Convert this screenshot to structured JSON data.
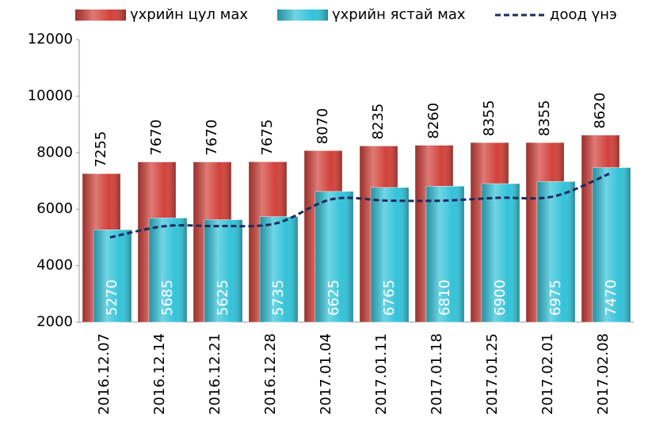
{
  "chart_data": {
    "type": "bar",
    "categories": [
      "2016.12.07",
      "2016.12.14",
      "2016.12.21",
      "2016.12.28",
      "2017.01.04",
      "2017.01.11",
      "2017.01.18",
      "2017.01.25",
      "2017.02.01",
      "2017.02.08"
    ],
    "series": [
      {
        "name": "үхрийн цул мах",
        "type": "bar",
        "color": "#d2413a",
        "values": [
          7255,
          7670,
          7670,
          7675,
          8070,
          8235,
          8260,
          8355,
          8355,
          8620
        ]
      },
      {
        "name": "үхрийн ястай мах",
        "type": "bar",
        "color": "#33c3d9",
        "values": [
          5270,
          5685,
          5625,
          5735,
          6625,
          6765,
          6810,
          6900,
          6975,
          7470
        ]
      },
      {
        "name": "доод үнэ",
        "type": "line",
        "color": "#1f2a5e",
        "values": [
          5000,
          5400,
          5400,
          5500,
          6350,
          6300,
          6300,
          6400,
          6450,
          7250
        ]
      }
    ],
    "ylim": [
      2000,
      12000
    ],
    "yticks": [
      2000,
      4000,
      6000,
      8000,
      10000,
      12000
    ],
    "grid": false
  }
}
